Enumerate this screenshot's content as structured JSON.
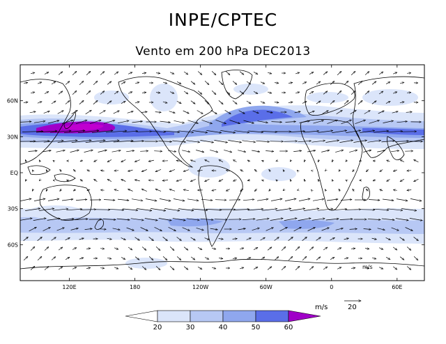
{
  "header": {
    "title": "INPE/CPTEC",
    "subtitle": "Vento em 200 hPa DEC2013"
  },
  "map": {
    "lat_labels": [
      "60N",
      "30N",
      "EQ",
      "30S",
      "60S"
    ],
    "lat_values": [
      60,
      30,
      0,
      -30,
      -60
    ],
    "lon_labels": [
      "120E",
      "180",
      "120W",
      "60W",
      "0",
      "60E"
    ],
    "lon_values": [
      120,
      180,
      240,
      300,
      360,
      420
    ],
    "lon_range": [
      75,
      445
    ],
    "lat_range": [
      -90,
      90
    ],
    "vector_units_label": "m/s",
    "reference_vector_value": "20",
    "corner_unit_label": "m/s"
  },
  "legend": {
    "unit_label": "m/s",
    "ticks": [
      "20",
      "30",
      "40",
      "50",
      "60"
    ],
    "colors": [
      "#ffffff",
      "#dbe5fa",
      "#b7c8f4",
      "#8fa7ee",
      "#5a6ee8",
      "#a000c8"
    ]
  },
  "colors": {
    "coast": "#000000",
    "jet_core": "#a000c8",
    "shade_20": "#dbe5fa",
    "shade_30": "#b7c8f4",
    "shade_40": "#8fa7ee",
    "shade_50": "#5a6ee8"
  }
}
